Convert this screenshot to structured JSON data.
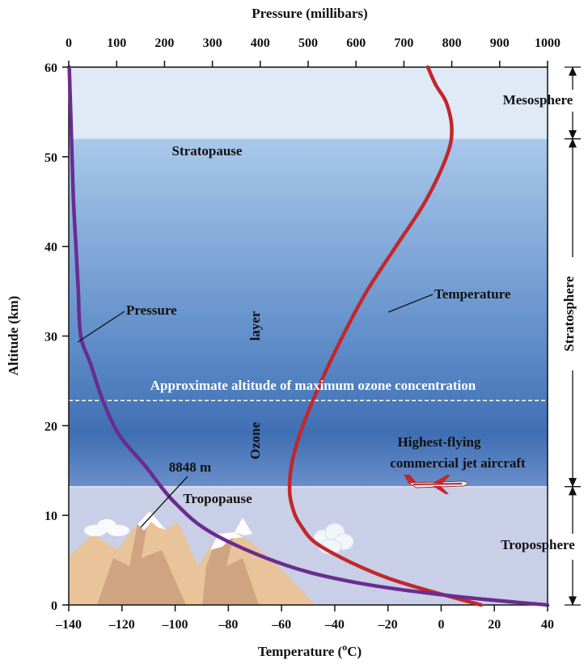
{
  "chart_data": {
    "type": "line",
    "top_axis_title": "Pressure (millibars)",
    "bottom_axis_title": "Temperature (",
    "bottom_axis_title_sup": "o",
    "bottom_axis_title_end": "C)",
    "left_axis_title": "Altitude (km)",
    "altitude_range": [
      0,
      60
    ],
    "altitude_ticks": [
      "0",
      "10",
      "20",
      "30",
      "40",
      "50",
      "60"
    ],
    "temperature_range": [
      -140,
      40
    ],
    "temperature_ticks": [
      "–140",
      "–120",
      "–100",
      "–80",
      "–60",
      "–40",
      "–20",
      "0",
      "20",
      "40"
    ],
    "pressure_range": [
      0,
      1000
    ],
    "pressure_ticks": [
      "0",
      "100",
      "200",
      "300",
      "400",
      "500",
      "600",
      "700",
      "800",
      "900",
      "1000"
    ],
    "series": [
      {
        "name": "Temperature",
        "color": "#c1272d",
        "x_units": "°C",
        "points": [
          [
            15,
            0
          ],
          [
            -20,
            3
          ],
          [
            -45,
            6.5
          ],
          [
            -53,
            9
          ],
          [
            -56,
            11
          ],
          [
            -57,
            13
          ],
          [
            -56,
            16
          ],
          [
            -52,
            20
          ],
          [
            -45,
            25
          ],
          [
            -37,
            30
          ],
          [
            -28,
            35
          ],
          [
            -17,
            40
          ],
          [
            -6,
            45
          ],
          [
            2,
            50
          ],
          [
            4,
            53
          ],
          [
            2,
            56
          ],
          [
            -2,
            58
          ],
          [
            -5,
            60
          ]
        ]
      },
      {
        "name": "Pressure",
        "color": "#6a2c91",
        "x_units": "millibars",
        "points": [
          [
            1000,
            0
          ],
          [
            800,
            1
          ],
          [
            600,
            2.5
          ],
          [
            450,
            4.5
          ],
          [
            300,
            8
          ],
          [
            220,
            11.5
          ],
          [
            160,
            15.5
          ],
          [
            105,
            19
          ],
          [
            70,
            23
          ],
          [
            45,
            27
          ],
          [
            25,
            30
          ],
          [
            20,
            35
          ],
          [
            15,
            40
          ],
          [
            10,
            45
          ],
          [
            7,
            50
          ],
          [
            4,
            55
          ],
          [
            1,
            60
          ]
        ]
      }
    ],
    "layers": [
      {
        "name": "Troposphere",
        "from_km": 0,
        "to_km": 13.2,
        "color": "#c9cfe6"
      },
      {
        "name": "Stratosphere",
        "from_km": 13.2,
        "to_km": 52,
        "color_top": "#a9c8ea",
        "color_bottom": "#3f6fb3"
      },
      {
        "name": "Mesosphere",
        "from_km": 52,
        "to_km": 60,
        "color": "#e0eaf7"
      }
    ],
    "boundaries": [
      {
        "label": "Tropopause",
        "altitude_km": 13.2
      },
      {
        "label": "Stratopause",
        "altitude_km": 52
      }
    ],
    "ozone_max_altitude_km": 22.8,
    "ozone_max_label": "Approximate altitude of maximum ozone concentration",
    "ozone_layer_word1": "Ozone",
    "ozone_layer_word2": "layer",
    "everest_label": "8848 m",
    "everest_altitude_km": 8.848,
    "jet_label_line1": "Highest-flying",
    "jet_label_line2": "commercial jet aircraft",
    "grid": false
  }
}
